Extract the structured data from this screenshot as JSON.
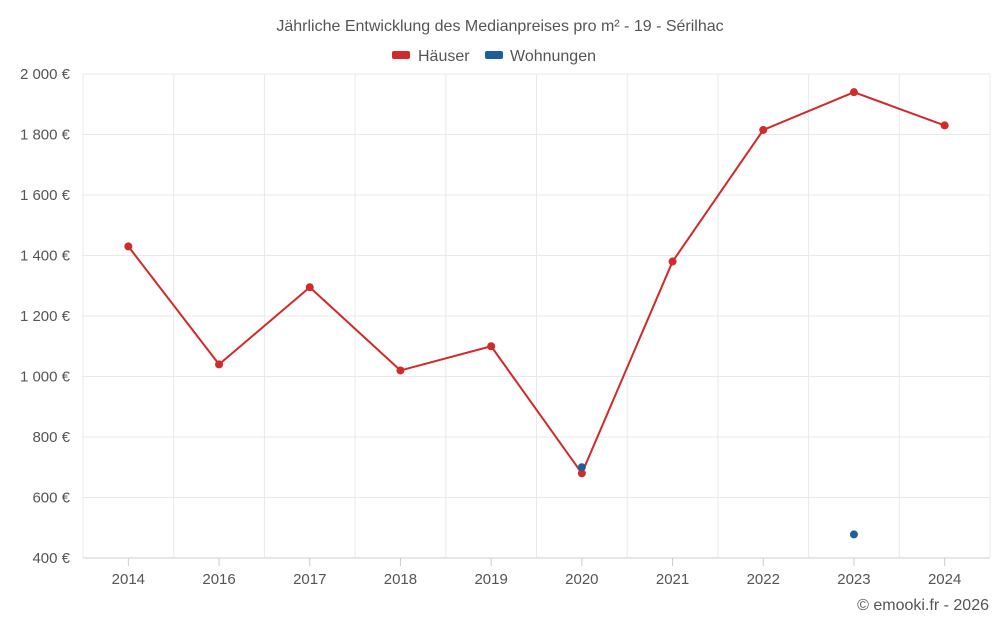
{
  "chart_data": {
    "type": "line",
    "title": "Jährliche Entwicklung des Medianpreises pro m² - 19 - Sérilhac",
    "categories": [
      "2014",
      "2016",
      "2017",
      "2018",
      "2019",
      "2020",
      "2021",
      "2022",
      "2023",
      "2024"
    ],
    "series": [
      {
        "name": "Häuser",
        "color": "#d12a2a",
        "values": [
          1430,
          1040,
          1295,
          1020,
          1100,
          680,
          1380,
          1815,
          1940,
          1830
        ]
      },
      {
        "name": "Wohnungen",
        "color": "#1f5f99",
        "values": [
          null,
          null,
          null,
          null,
          null,
          700,
          null,
          null,
          478,
          null
        ]
      }
    ],
    "ylim": [
      400,
      2000
    ],
    "yticks": [
      400,
      600,
      800,
      1000,
      1200,
      1400,
      1600,
      1800,
      2000
    ],
    "ytick_labels": [
      "400 €",
      "600 €",
      "800 €",
      "1 000 €",
      "1 200 €",
      "1 400 €",
      "1 600 €",
      "1 800 €",
      "2 000 €"
    ],
    "xlabel": "",
    "ylabel": "",
    "grid": true,
    "legend_position": "top-center",
    "credit": "© emooki.fr - 2026"
  }
}
